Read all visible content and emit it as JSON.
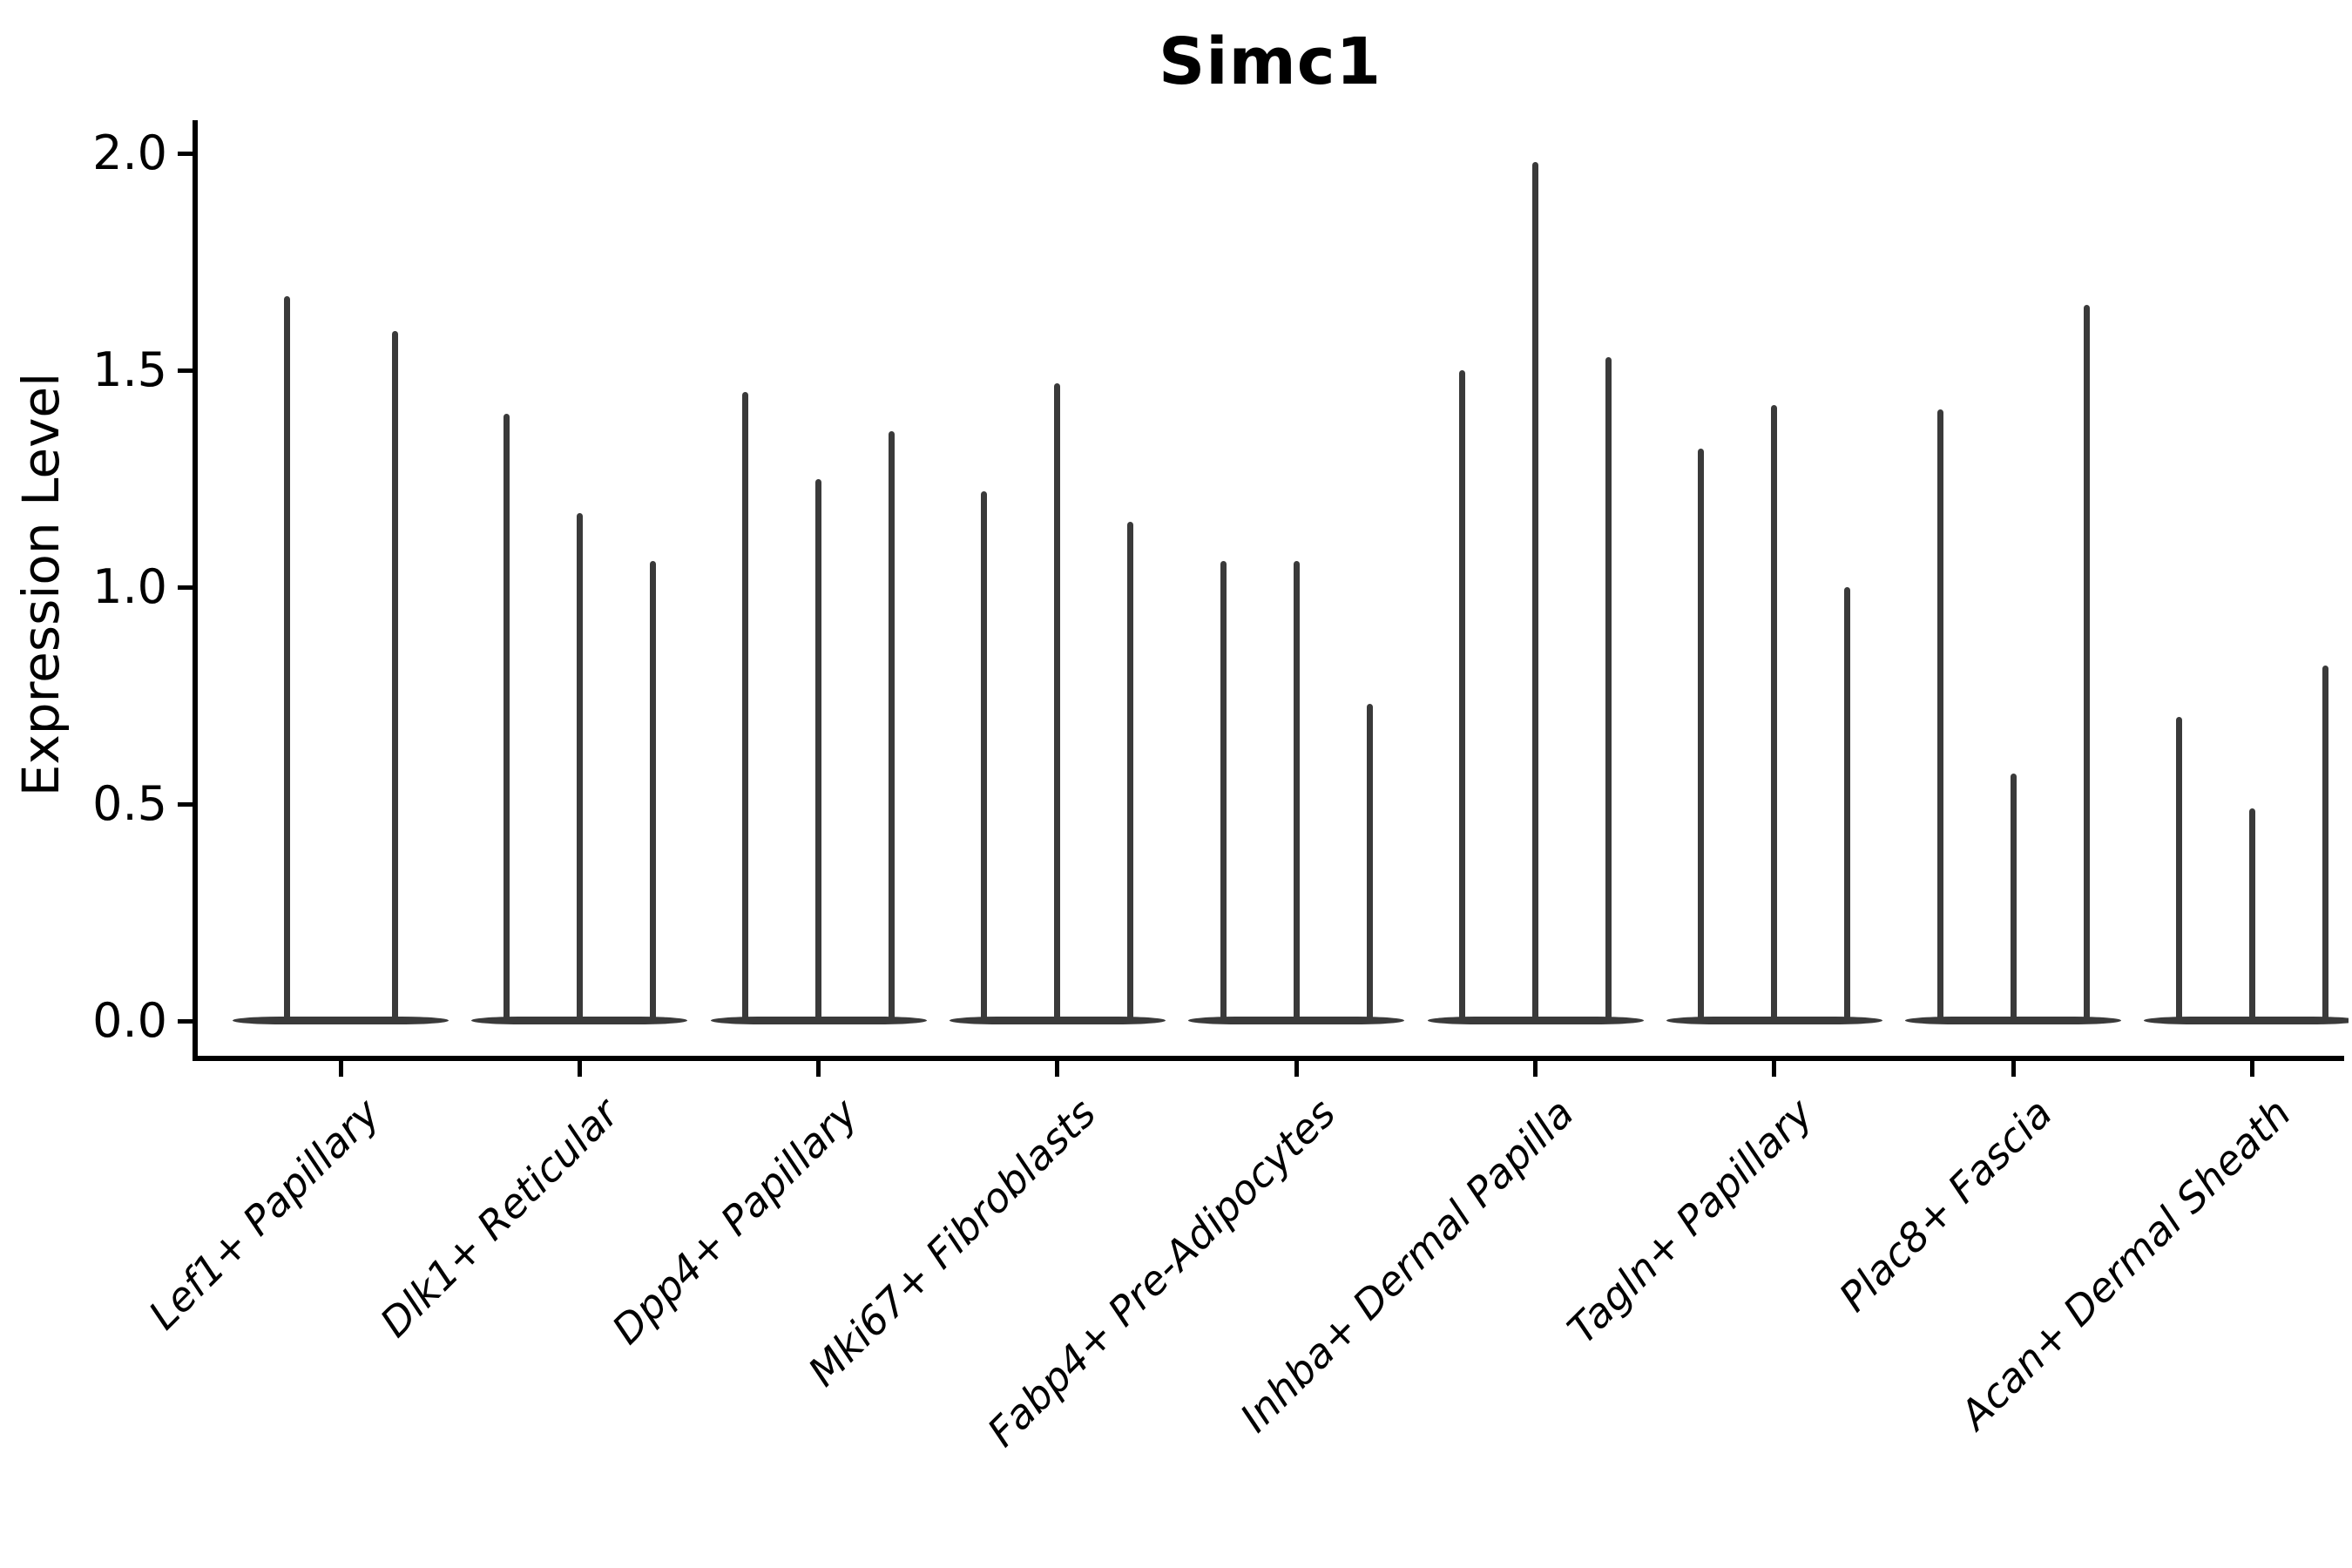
{
  "chart_data": {
    "type": "violin",
    "title": "Simc1",
    "ylabel": "Expression Level",
    "xlabel": "",
    "ylim": [
      0.0,
      2.1
    ],
    "yticks": [
      0.0,
      0.5,
      1.0,
      1.5,
      2.0
    ],
    "ytick_labels": [
      "0.0",
      "0.5",
      "1.0",
      "1.5",
      "2.0"
    ],
    "grid": false,
    "legend": "none",
    "categories": [
      "Lef1+ Papillary",
      "Dlk1+ Reticular",
      "Dpp4+ Papillary",
      "Mki67+ Fibroblasts",
      "Fabp4+ Pre-Adipocytes",
      "Inhba+ Dermal Papilla",
      "Tagln+ Papillary",
      "Plac8+ Fascia",
      "Acan+ Dermal Sheath"
    ],
    "series": [
      {
        "category": "Lef1+ Papillary",
        "violin_maxima": [
          1.67,
          1.59
        ],
        "baseline_value": 0.0
      },
      {
        "category": "Dlk1+ Reticular",
        "violin_maxima": [
          1.4,
          1.17,
          1.06
        ],
        "baseline_value": 0.0
      },
      {
        "category": "Dpp4+ Papillary",
        "violin_maxima": [
          1.45,
          1.25,
          1.36
        ],
        "baseline_value": 0.0
      },
      {
        "category": "Mki67+ Fibroblasts",
        "violin_maxima": [
          1.22,
          1.47,
          1.15
        ],
        "baseline_value": 0.0
      },
      {
        "category": "Fabp4+ Pre-Adipocytes",
        "violin_maxima": [
          1.06,
          1.06,
          0.73
        ],
        "baseline_value": 0.0
      },
      {
        "category": "Inhba+ Dermal Papilla",
        "violin_maxima": [
          1.5,
          1.98,
          1.53
        ],
        "baseline_value": 0.0
      },
      {
        "category": "Tagln+ Papillary",
        "violin_maxima": [
          1.32,
          1.42,
          1.0
        ],
        "baseline_value": 0.0
      },
      {
        "category": "Plac8+ Fascia",
        "violin_maxima": [
          1.41,
          0.57,
          1.65
        ],
        "baseline_value": 0.0
      },
      {
        "category": "Acan+ Dermal Sheath",
        "violin_maxima": [
          0.7,
          0.49,
          0.82
        ],
        "baseline_value": 0.0
      }
    ],
    "style": {
      "violin_color": "#3a3a3a",
      "axis_color": "#000000",
      "background_color": "#ffffff",
      "title_bold": true,
      "xtick_rotation_deg": 45,
      "xtick_font_style": "italic"
    },
    "layout_hints": {
      "legend_position": "none",
      "x_axis_labels_rotated": true,
      "violins_per_group": [
        2,
        3,
        3,
        3,
        3,
        3,
        3,
        3,
        3
      ]
    }
  }
}
